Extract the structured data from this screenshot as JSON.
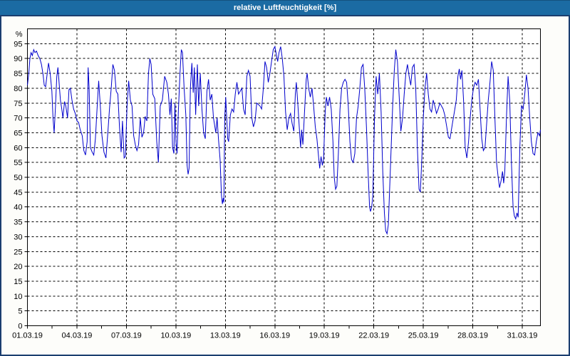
{
  "window": {
    "title": "relative Luftfeuchtigkeit [%]"
  },
  "colors": {
    "titlebar": "#1B6BA3",
    "window_border": "#1B3E6F",
    "background": "#FDFDFA",
    "plot_background": "#FFFFFF",
    "grid": "#000000",
    "line": "#0000CC",
    "title_text": "#FFFFFF",
    "label_text": "#000000"
  },
  "chart_data": {
    "type": "line",
    "title": "relative Luftfeuchtigkeit [%]",
    "ylabel": "%",
    "xlabel": "",
    "ylim": [
      0,
      100
    ],
    "y_tick_step": 5,
    "y_tick_max": 95,
    "xlim_days": [
      0,
      31.1
    ],
    "x_tick_interval_days": 3,
    "x_minor_tick_interval_days": 1.5,
    "grid": "dashed",
    "legend": "none",
    "series_name": "relative Luftfeuchtigkeit",
    "unit": "%",
    "x_tick_labels": [
      "01.03.19",
      "04.03.19",
      "07.03.19",
      "10.03.19",
      "13.03.19",
      "16.03.19",
      "19.03.19",
      "22.03.19",
      "25.03.19",
      "28.03.19",
      "31.03.19"
    ],
    "points": [
      [
        0,
        81
      ],
      [
        0.08,
        85
      ],
      [
        0.15,
        90
      ],
      [
        0.22,
        92
      ],
      [
        0.3,
        91
      ],
      [
        0.38,
        93
      ],
      [
        0.46,
        92
      ],
      [
        0.55,
        92.5
      ],
      [
        0.65,
        91
      ],
      [
        0.75,
        90
      ],
      [
        0.85,
        88
      ],
      [
        0.95,
        84.5
      ],
      [
        1.02,
        81
      ],
      [
        1.1,
        80.5
      ],
      [
        1.2,
        85
      ],
      [
        1.28,
        88.5
      ],
      [
        1.38,
        85
      ],
      [
        1.48,
        79
      ],
      [
        1.55,
        70
      ],
      [
        1.62,
        65
      ],
      [
        1.7,
        74
      ],
      [
        1.78,
        84
      ],
      [
        1.85,
        87
      ],
      [
        1.93,
        81
      ],
      [
        2.0,
        76
      ],
      [
        2.08,
        73
      ],
      [
        2.15,
        70
      ],
      [
        2.25,
        75.5
      ],
      [
        2.33,
        74
      ],
      [
        2.43,
        70
      ],
      [
        2.52,
        79.5
      ],
      [
        2.6,
        80
      ],
      [
        2.7,
        76
      ],
      [
        2.8,
        73
      ],
      [
        2.9,
        71.5
      ],
      [
        3.0,
        69
      ],
      [
        3.1,
        68.5
      ],
      [
        3.2,
        66
      ],
      [
        3.32,
        64
      ],
      [
        3.42,
        59
      ],
      [
        3.52,
        57.5
      ],
      [
        3.62,
        62
      ],
      [
        3.68,
        87
      ],
      [
        3.74,
        80
      ],
      [
        3.82,
        60
      ],
      [
        3.92,
        58.5
      ],
      [
        4.02,
        57.5
      ],
      [
        4.12,
        63
      ],
      [
        4.22,
        73
      ],
      [
        4.32,
        82.5
      ],
      [
        4.42,
        74
      ],
      [
        4.52,
        64
      ],
      [
        4.64,
        58.5
      ],
      [
        4.76,
        56.5
      ],
      [
        4.88,
        65.5
      ],
      [
        4.98,
        73.5
      ],
      [
        5.08,
        80
      ],
      [
        5.18,
        88
      ],
      [
        5.28,
        86
      ],
      [
        5.38,
        79
      ],
      [
        5.48,
        78
      ],
      [
        5.58,
        67
      ],
      [
        5.68,
        58.5
      ],
      [
        5.76,
        69
      ],
      [
        5.86,
        56.5
      ],
      [
        5.94,
        57
      ],
      [
        6.04,
        74
      ],
      [
        6.14,
        82.5
      ],
      [
        6.24,
        76
      ],
      [
        6.34,
        74
      ],
      [
        6.44,
        64
      ],
      [
        6.54,
        61
      ],
      [
        6.64,
        59
      ],
      [
        6.74,
        61
      ],
      [
        6.84,
        70
      ],
      [
        6.94,
        63.5
      ],
      [
        7.04,
        65
      ],
      [
        7.14,
        70.5
      ],
      [
        7.24,
        69
      ],
      [
        7.34,
        85
      ],
      [
        7.42,
        90
      ],
      [
        7.5,
        88
      ],
      [
        7.6,
        78
      ],
      [
        7.72,
        76.5
      ],
      [
        7.84,
        62
      ],
      [
        7.94,
        55
      ],
      [
        8.05,
        74
      ],
      [
        8.18,
        76
      ],
      [
        8.32,
        84
      ],
      [
        8.45,
        82
      ],
      [
        8.55,
        78
      ],
      [
        8.64,
        71
      ],
      [
        8.72,
        76.5
      ],
      [
        8.8,
        60
      ],
      [
        8.88,
        58
      ],
      [
        8.94,
        75
      ],
      [
        9.0,
        62
      ],
      [
        9.07,
        58
      ],
      [
        9.15,
        72
      ],
      [
        9.25,
        85
      ],
      [
        9.33,
        93
      ],
      [
        9.4,
        92
      ],
      [
        9.5,
        80
      ],
      [
        9.6,
        71
      ],
      [
        9.68,
        54
      ],
      [
        9.74,
        51
      ],
      [
        9.8,
        53
      ],
      [
        9.88,
        80
      ],
      [
        9.97,
        88.5
      ],
      [
        10.05,
        78.5
      ],
      [
        10.12,
        87
      ],
      [
        10.2,
        71
      ],
      [
        10.3,
        88
      ],
      [
        10.38,
        74
      ],
      [
        10.48,
        85
      ],
      [
        10.58,
        73
      ],
      [
        10.68,
        65
      ],
      [
        10.78,
        63
      ],
      [
        10.88,
        79
      ],
      [
        10.98,
        83
      ],
      [
        11.08,
        76
      ],
      [
        11.18,
        78
      ],
      [
        11.28,
        70
      ],
      [
        11.42,
        65
      ],
      [
        11.5,
        70
      ],
      [
        11.58,
        63
      ],
      [
        11.68,
        56
      ],
      [
        11.76,
        44
      ],
      [
        11.82,
        41
      ],
      [
        11.87,
        43
      ],
      [
        11.91,
        41.5
      ],
      [
        11.96,
        70
      ],
      [
        12.02,
        77
      ],
      [
        12.08,
        70
      ],
      [
        12.14,
        63
      ],
      [
        12.2,
        62
      ],
      [
        12.3,
        71
      ],
      [
        12.4,
        73
      ],
      [
        12.5,
        72
      ],
      [
        12.6,
        78
      ],
      [
        12.7,
        82
      ],
      [
        12.8,
        78
      ],
      [
        12.9,
        79
      ],
      [
        13.0,
        80
      ],
      [
        13.1,
        73
      ],
      [
        13.2,
        71
      ],
      [
        13.3,
        84
      ],
      [
        13.4,
        86
      ],
      [
        13.5,
        84
      ],
      [
        13.6,
        70
      ],
      [
        13.7,
        67
      ],
      [
        13.8,
        69
      ],
      [
        13.9,
        75
      ],
      [
        14.0,
        74.5
      ],
      [
        14.1,
        74
      ],
      [
        14.2,
        73
      ],
      [
        14.3,
        80
      ],
      [
        14.4,
        89
      ],
      [
        14.5,
        87
      ],
      [
        14.6,
        82
      ],
      [
        14.7,
        85
      ],
      [
        14.8,
        89
      ],
      [
        14.9,
        93
      ],
      [
        15.0,
        94
      ],
      [
        15.1,
        91
      ],
      [
        15.17,
        89
      ],
      [
        15.25,
        92
      ],
      [
        15.35,
        94
      ],
      [
        15.45,
        90
      ],
      [
        15.55,
        84
      ],
      [
        15.65,
        72
      ],
      [
        15.75,
        66
      ],
      [
        15.85,
        70
      ],
      [
        15.95,
        71.5
      ],
      [
        16.05,
        68
      ],
      [
        16.15,
        65.5
      ],
      [
        16.24,
        78
      ],
      [
        16.3,
        82
      ],
      [
        16.4,
        74
      ],
      [
        16.5,
        65
      ],
      [
        16.56,
        60
      ],
      [
        16.62,
        66
      ],
      [
        16.7,
        61
      ],
      [
        16.8,
        72
      ],
      [
        16.9,
        83
      ],
      [
        16.96,
        85
      ],
      [
        17.05,
        80
      ],
      [
        17.15,
        77
      ],
      [
        17.25,
        80
      ],
      [
        17.35,
        74
      ],
      [
        17.45,
        67
      ],
      [
        17.55,
        63
      ],
      [
        17.65,
        57
      ],
      [
        17.72,
        53
      ],
      [
        17.8,
        57
      ],
      [
        17.88,
        54
      ],
      [
        17.95,
        56
      ],
      [
        18.05,
        72
      ],
      [
        18.12,
        77
      ],
      [
        18.22,
        74
      ],
      [
        18.32,
        77
      ],
      [
        18.42,
        73
      ],
      [
        18.52,
        62
      ],
      [
        18.6,
        50
      ],
      [
        18.68,
        46
      ],
      [
        18.76,
        47
      ],
      [
        18.85,
        58
      ],
      [
        18.95,
        73
      ],
      [
        19.05,
        80
      ],
      [
        19.15,
        82
      ],
      [
        19.25,
        83
      ],
      [
        19.35,
        82
      ],
      [
        19.45,
        74
      ],
      [
        19.55,
        62
      ],
      [
        19.65,
        56
      ],
      [
        19.75,
        55
      ],
      [
        19.85,
        58
      ],
      [
        19.95,
        70
      ],
      [
        20.05,
        74
      ],
      [
        20.15,
        80
      ],
      [
        20.25,
        87
      ],
      [
        20.35,
        88
      ],
      [
        20.45,
        80
      ],
      [
        20.55,
        67
      ],
      [
        20.65,
        52
      ],
      [
        20.74,
        40
      ],
      [
        20.8,
        38.5
      ],
      [
        20.87,
        40
      ],
      [
        20.94,
        44
      ],
      [
        21.04,
        70
      ],
      [
        21.14,
        84
      ],
      [
        21.24,
        78
      ],
      [
        21.34,
        85
      ],
      [
        21.44,
        72
      ],
      [
        21.54,
        52
      ],
      [
        21.64,
        38
      ],
      [
        21.72,
        32
      ],
      [
        21.8,
        31
      ],
      [
        21.88,
        34
      ],
      [
        21.95,
        45
      ],
      [
        22.05,
        60
      ],
      [
        22.14,
        74
      ],
      [
        22.24,
        86
      ],
      [
        22.33,
        93
      ],
      [
        22.43,
        89
      ],
      [
        22.54,
        77
      ],
      [
        22.64,
        65.5
      ],
      [
        22.74,
        70
      ],
      [
        22.84,
        78
      ],
      [
        22.94,
        85
      ],
      [
        23.04,
        88
      ],
      [
        23.14,
        84
      ],
      [
        23.24,
        81
      ],
      [
        23.34,
        87
      ],
      [
        23.44,
        88
      ],
      [
        23.54,
        80
      ],
      [
        23.64,
        60
      ],
      [
        23.74,
        46
      ],
      [
        23.82,
        45
      ],
      [
        23.9,
        55
      ],
      [
        24.0,
        70
      ],
      [
        24.1,
        80
      ],
      [
        24.2,
        85
      ],
      [
        24.3,
        78
      ],
      [
        24.4,
        73
      ],
      [
        24.5,
        72
      ],
      [
        24.6,
        76
      ],
      [
        24.7,
        74
      ],
      [
        24.8,
        71.5
      ],
      [
        24.9,
        73
      ],
      [
        25.0,
        75
      ],
      [
        25.1,
        74
      ],
      [
        25.2,
        73
      ],
      [
        25.3,
        71
      ],
      [
        25.42,
        67
      ],
      [
        25.52,
        63.5
      ],
      [
        25.62,
        63
      ],
      [
        25.76,
        68
      ],
      [
        25.88,
        72
      ],
      [
        26.0,
        76
      ],
      [
        26.1,
        84
      ],
      [
        26.18,
        86.5
      ],
      [
        26.26,
        83
      ],
      [
        26.34,
        86
      ],
      [
        26.44,
        76
      ],
      [
        26.54,
        60
      ],
      [
        26.64,
        56.5
      ],
      [
        26.74,
        62
      ],
      [
        26.84,
        70
      ],
      [
        26.94,
        76
      ],
      [
        27.04,
        80
      ],
      [
        27.14,
        82
      ],
      [
        27.24,
        81
      ],
      [
        27.34,
        83
      ],
      [
        27.44,
        73
      ],
      [
        27.54,
        63
      ],
      [
        27.64,
        59
      ],
      [
        27.74,
        60
      ],
      [
        27.84,
        68
      ],
      [
        27.94,
        76
      ],
      [
        28.04,
        82
      ],
      [
        28.14,
        89
      ],
      [
        28.24,
        86
      ],
      [
        28.34,
        70
      ],
      [
        28.44,
        55
      ],
      [
        28.54,
        50
      ],
      [
        28.62,
        46.5
      ],
      [
        28.72,
        49
      ],
      [
        28.8,
        52
      ],
      [
        28.87,
        48
      ],
      [
        28.94,
        52
      ],
      [
        29.04,
        70
      ],
      [
        29.14,
        84
      ],
      [
        29.24,
        76
      ],
      [
        29.34,
        55
      ],
      [
        29.44,
        40
      ],
      [
        29.52,
        37
      ],
      [
        29.6,
        36
      ],
      [
        29.68,
        38
      ],
      [
        29.75,
        36.5
      ],
      [
        29.85,
        60
      ],
      [
        29.95,
        74
      ],
      [
        30.05,
        73
      ],
      [
        30.15,
        78
      ],
      [
        30.25,
        84.5
      ],
      [
        30.35,
        80
      ],
      [
        30.45,
        70
      ],
      [
        30.55,
        62
      ],
      [
        30.65,
        58
      ],
      [
        30.75,
        57.5
      ],
      [
        30.85,
        62
      ],
      [
        30.95,
        65
      ],
      [
        31.05,
        64
      ],
      [
        31.1,
        66
      ]
    ]
  }
}
